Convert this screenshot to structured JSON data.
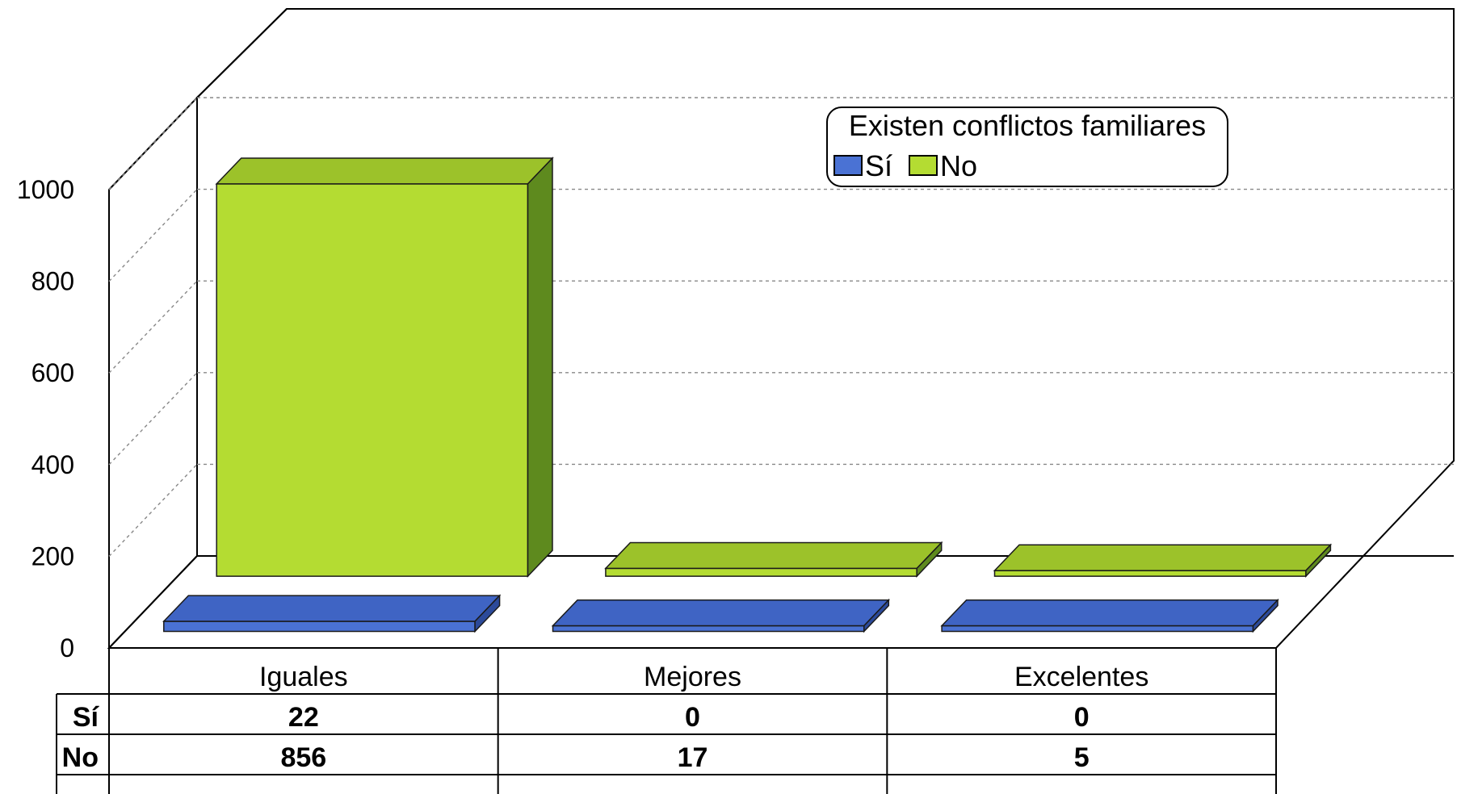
{
  "chart_data": {
    "type": "bar",
    "categories": [
      "Iguales",
      "Mejores",
      "Excelentes"
    ],
    "series": [
      {
        "name": "Sí",
        "values": [
          22,
          0,
          0
        ],
        "color": "#4A72D4"
      },
      {
        "name": "No",
        "values": [
          856,
          17,
          5
        ],
        "color": "#B4DC32"
      }
    ],
    "ylim": [
      0,
      1000
    ],
    "yticks": [
      0,
      200,
      400,
      600,
      800,
      1000
    ],
    "grid": true,
    "legend": {
      "title": "Existen conflictos familiares",
      "placement": "top-right"
    },
    "data_table": {
      "rows": [
        {
          "label": "Sí",
          "values": [
            "22",
            "0",
            "0"
          ]
        },
        {
          "label": "No",
          "values": [
            "856",
            "17",
            "5"
          ]
        }
      ]
    },
    "render": "3d-clustered-columns"
  }
}
